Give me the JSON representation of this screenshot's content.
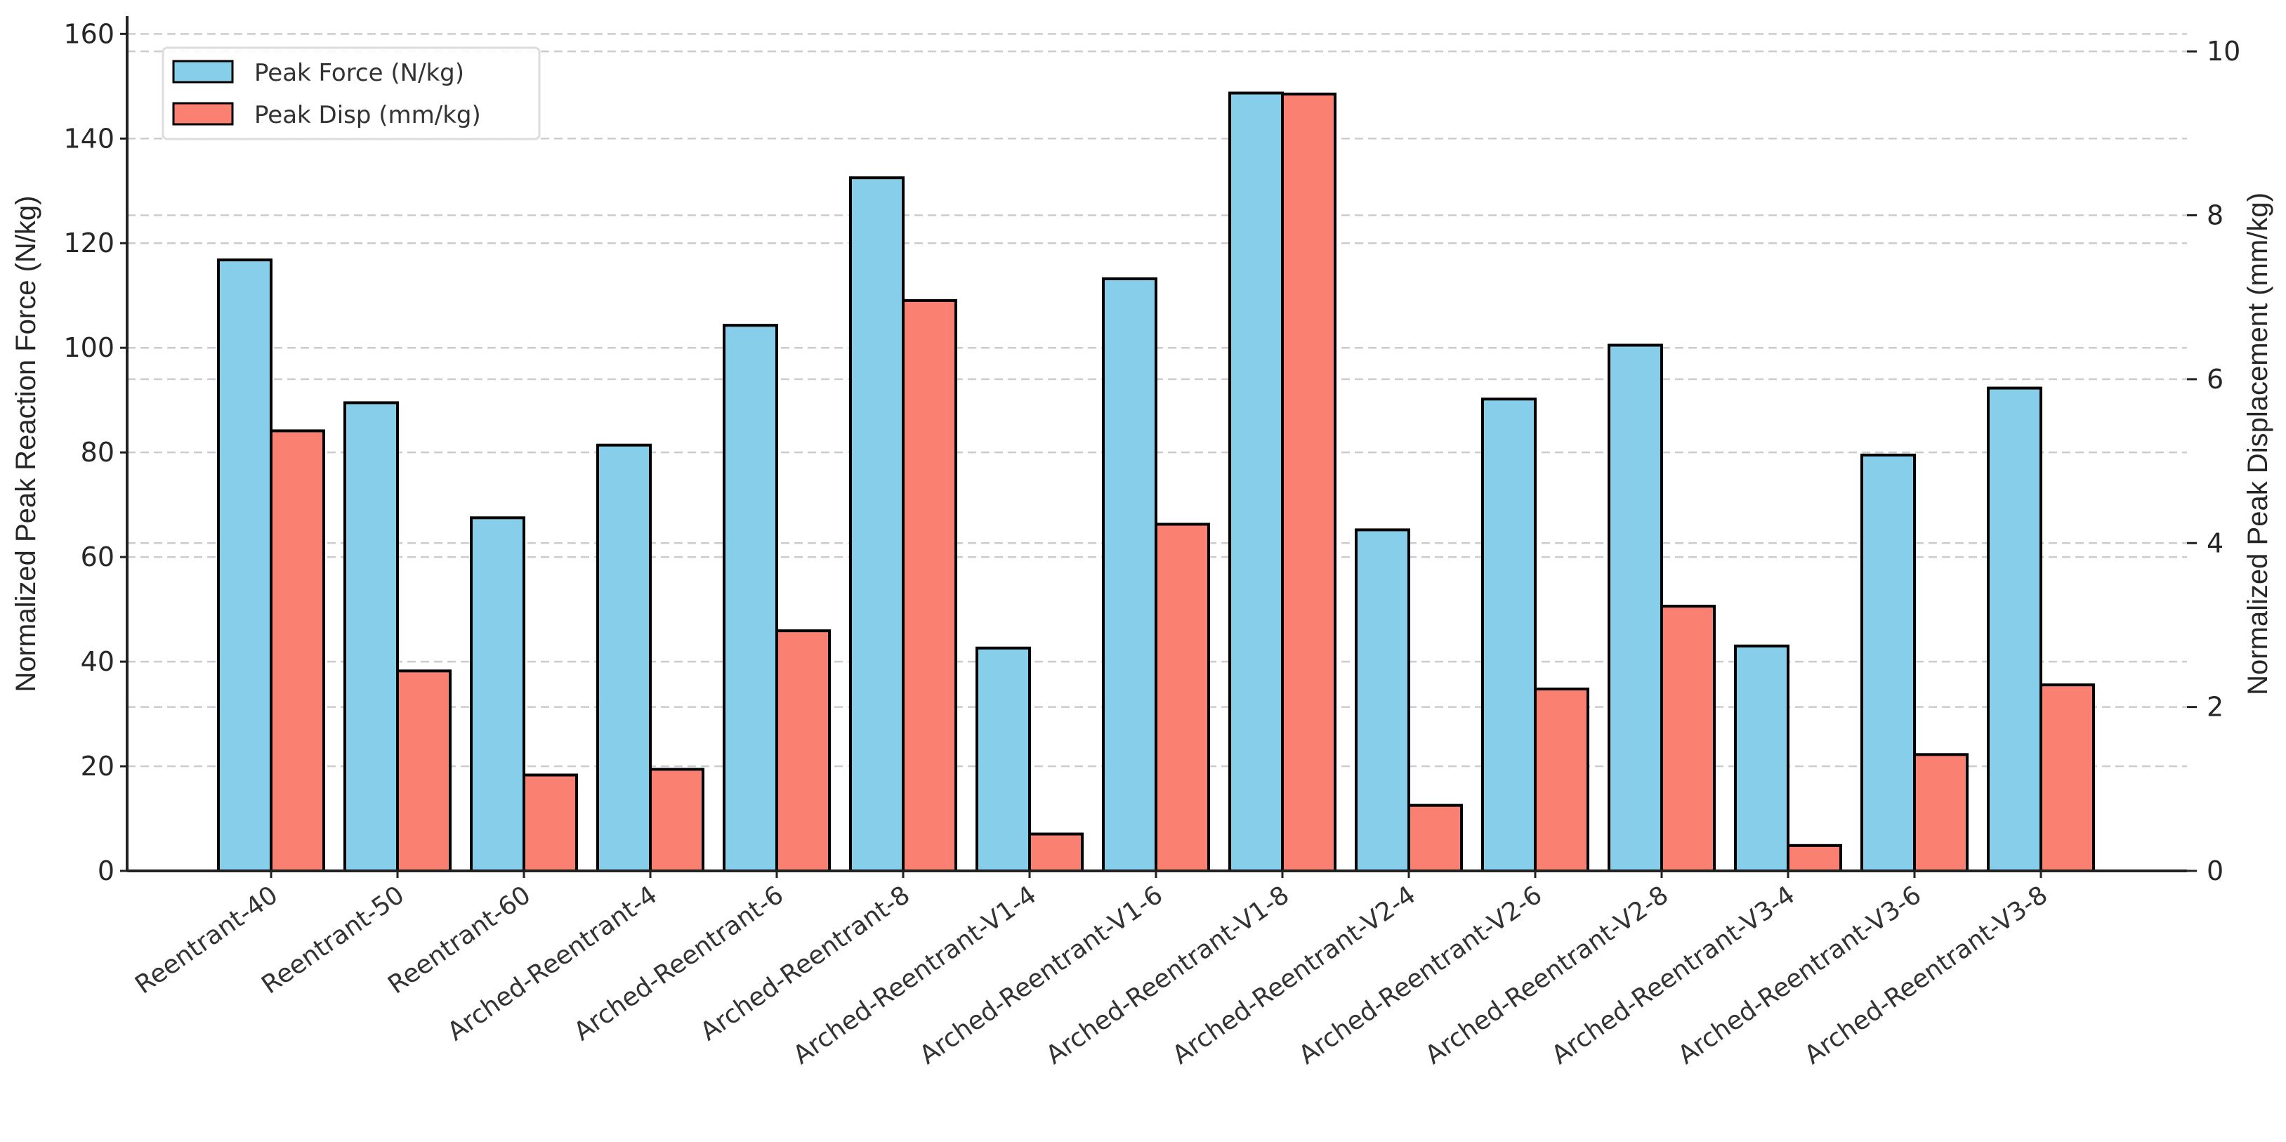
{
  "chart_data": {
    "type": "bar",
    "title": "",
    "xlabel": "",
    "ylabel": "Normalized Peak Reaction Force (N/kg)",
    "y2label": "Normalized Peak Displacement (mm/kg)",
    "ylim": [
      0,
      163.4
    ],
    "y2lim": [
      0,
      10.43
    ],
    "yticks": [
      0,
      20,
      40,
      60,
      80,
      100,
      120,
      140,
      160
    ],
    "y2ticks": [
      0,
      2,
      4,
      6,
      8,
      10
    ],
    "grid": true,
    "legend_position": "top-left",
    "categories": [
      "Reentrant-40",
      "Reentrant-50",
      "Reentrant-60",
      "Arched-Reentrant-4",
      "Arched-Reentrant-6",
      "Arched-Reentrant-8",
      "Arched-Reentrant-V1-4",
      "Arched-Reentrant-V1-6",
      "Arched-Reentrant-V1-8",
      "Arched-Reentrant-V2-4",
      "Arched-Reentrant-V2-6",
      "Arched-Reentrant-V2-8",
      "Arched-Reentrant-V3-4",
      "Arched-Reentrant-V3-6",
      "Arched-Reentrant-V3-8"
    ],
    "series": [
      {
        "name": "Peak Force (N/kg)",
        "axis": "left",
        "color": "#87CEEB",
        "values": [
          116.8,
          89.5,
          67.5,
          81.4,
          104.3,
          132.5,
          42.6,
          113.2,
          148.7,
          65.2,
          90.2,
          100.5,
          43.0,
          79.5,
          92.3
        ]
      },
      {
        "name": "Peak Disp (mm/kg)",
        "axis": "right",
        "color": "#FA8072",
        "values": [
          5.37,
          2.44,
          1.17,
          1.24,
          2.93,
          6.96,
          0.45,
          4.23,
          9.48,
          0.8,
          2.22,
          3.23,
          0.31,
          1.42,
          2.27
        ]
      }
    ]
  }
}
